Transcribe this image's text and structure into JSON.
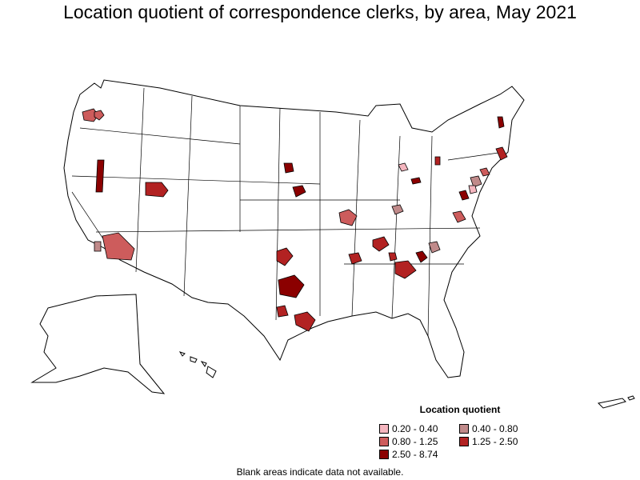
{
  "title": "Location quotient of correspondence clerks, by area, May 2021",
  "legend": {
    "title": "Location quotient",
    "items": [
      {
        "label": "0.20 - 0.40",
        "color": "#f5b6bf"
      },
      {
        "label": "0.40 - 0.80",
        "color": "#c08a8a"
      },
      {
        "label": "0.80 - 1.25",
        "color": "#cd5c5c"
      },
      {
        "label": "1.25 - 2.50",
        "color": "#b22222"
      },
      {
        "label": "2.50 - 8.74",
        "color": "#8b0000"
      }
    ]
  },
  "footnote": "Blank areas indicate data not available.",
  "colors": {
    "border": "#000000",
    "blank": "#ffffff"
  }
}
